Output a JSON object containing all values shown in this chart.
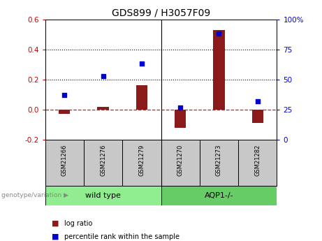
{
  "title": "GDS899 / H3057F09",
  "samples": [
    "GSM21266",
    "GSM21276",
    "GSM21279",
    "GSM21270",
    "GSM21273",
    "GSM21282"
  ],
  "log_ratio": [
    -0.03,
    0.02,
    0.16,
    -0.12,
    0.53,
    -0.09
  ],
  "percentile_rank": [
    37,
    53,
    63,
    27,
    88,
    32
  ],
  "groups": [
    {
      "label": "wild type",
      "color": "#90EE90"
    },
    {
      "label": "AQP1-/-",
      "color": "#66CC66"
    }
  ],
  "group_boundary": 2.5,
  "bar_color": "#8B1A1A",
  "scatter_color": "#0000CD",
  "zero_line_color": "#CC0000",
  "left_yticks": [
    -0.2,
    0.0,
    0.2,
    0.4,
    0.6
  ],
  "right_yticks": [
    0,
    25,
    50,
    75,
    100
  ],
  "ylim_left": [
    -0.2,
    0.6
  ],
  "ylim_right": [
    0,
    100
  ],
  "hlines": [
    0.2,
    0.4
  ],
  "tick_label_area_color": "#C8C8C8",
  "legend_items": [
    "log ratio",
    "percentile rank within the sample"
  ]
}
